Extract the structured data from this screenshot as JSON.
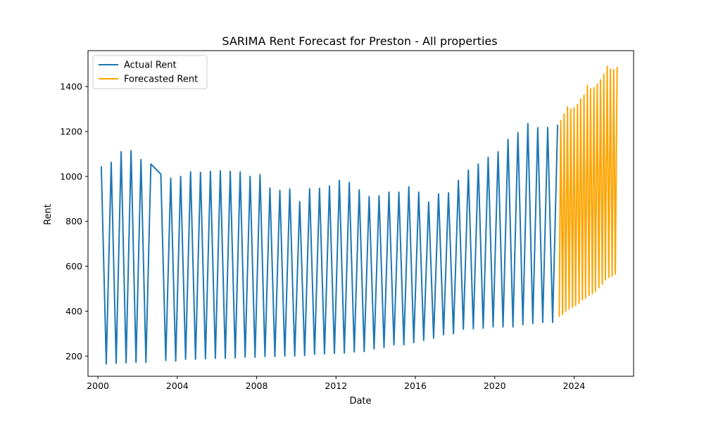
{
  "chart_data": {
    "type": "line",
    "title": "SARIMA Rent Forecast for Preston - All properties",
    "xlabel": "Date",
    "ylabel": "Rent",
    "xlim": [
      1999.5,
      2027.0
    ],
    "ylim": [
      110,
      1560
    ],
    "x_ticks": [
      2000,
      2004,
      2008,
      2012,
      2016,
      2020,
      2024
    ],
    "y_ticks": [
      200,
      400,
      600,
      800,
      1000,
      1200,
      1400
    ],
    "grid": false,
    "legend_position": "top-left",
    "series": [
      {
        "name": "Actual Rent",
        "color": "#1f77b4",
        "x": [
          2000.17,
          2000.42,
          2000.67,
          2000.92,
          2001.17,
          2001.42,
          2001.67,
          2001.92,
          2002.17,
          2002.42,
          2002.67,
          2003.17,
          2003.42,
          2003.67,
          2003.92,
          2004.17,
          2004.42,
          2004.67,
          2004.92,
          2005.17,
          2005.42,
          2005.67,
          2005.92,
          2006.17,
          2006.42,
          2006.67,
          2006.92,
          2007.17,
          2007.42,
          2007.67,
          2007.92,
          2008.17,
          2008.42,
          2008.67,
          2008.92,
          2009.17,
          2009.42,
          2009.67,
          2009.92,
          2010.17,
          2010.42,
          2010.67,
          2010.92,
          2011.17,
          2011.42,
          2011.67,
          2011.92,
          2012.17,
          2012.42,
          2012.67,
          2012.92,
          2013.17,
          2013.42,
          2013.67,
          2013.92,
          2014.17,
          2014.42,
          2014.67,
          2014.92,
          2015.17,
          2015.42,
          2015.67,
          2015.92,
          2016.17,
          2016.42,
          2016.67,
          2016.92,
          2017.17,
          2017.42,
          2017.67,
          2017.92,
          2018.17,
          2018.42,
          2018.67,
          2018.92,
          2019.17,
          2019.42,
          2019.67,
          2019.92,
          2020.17,
          2020.42,
          2020.67,
          2020.92,
          2021.17,
          2021.42,
          2021.67,
          2021.92,
          2022.17,
          2022.42,
          2022.67,
          2022.92,
          2023.17
        ],
        "y": [
          1045,
          165,
          1062,
          168,
          1110,
          170,
          1115,
          172,
          1075,
          172,
          1055,
          1010,
          180,
          992,
          178,
          1000,
          186,
          1020,
          186,
          1018,
          188,
          1022,
          190,
          1025,
          190,
          1022,
          192,
          1020,
          195,
          1000,
          195,
          1008,
          198,
          948,
          198,
          938,
          200,
          944,
          200,
          888,
          202,
          945,
          208,
          947,
          210,
          957,
          212,
          982,
          214,
          973,
          218,
          940,
          220,
          910,
          232,
          914,
          238,
          930,
          250,
          930,
          250,
          954,
          260,
          930,
          270,
          886,
          280,
          922,
          295,
          927,
          300,
          982,
          320,
          1028,
          322,
          1055,
          324,
          1085,
          330,
          1110,
          330,
          1165,
          330,
          1195,
          340,
          1235,
          345,
          1217,
          350,
          1218,
          350,
          1230
        ]
      },
      {
        "name": "Forecasted Rent",
        "color": "#ffa500",
        "x": [
          2023.25,
          2023.33,
          2023.42,
          2023.5,
          2023.58,
          2023.67,
          2023.75,
          2023.83,
          2023.92,
          2024.0,
          2024.08,
          2024.17,
          2024.25,
          2024.33,
          2024.42,
          2024.5,
          2024.58,
          2024.67,
          2024.75,
          2024.83,
          2024.92,
          2025.0,
          2025.08,
          2025.17,
          2025.25,
          2025.33,
          2025.42,
          2025.5,
          2025.58,
          2025.67,
          2025.75,
          2025.83,
          2025.92,
          2026.0,
          2026.08,
          2026.17
        ],
        "y": [
          375,
          1248,
          385,
          1278,
          400,
          1310,
          410,
          1300,
          418,
          1305,
          425,
          1320,
          435,
          1345,
          450,
          1362,
          458,
          1405,
          470,
          1390,
          478,
          1395,
          488,
          1410,
          505,
          1430,
          520,
          1455,
          540,
          1490,
          550,
          1478,
          556,
          1475,
          565,
          1488
        ]
      }
    ]
  }
}
